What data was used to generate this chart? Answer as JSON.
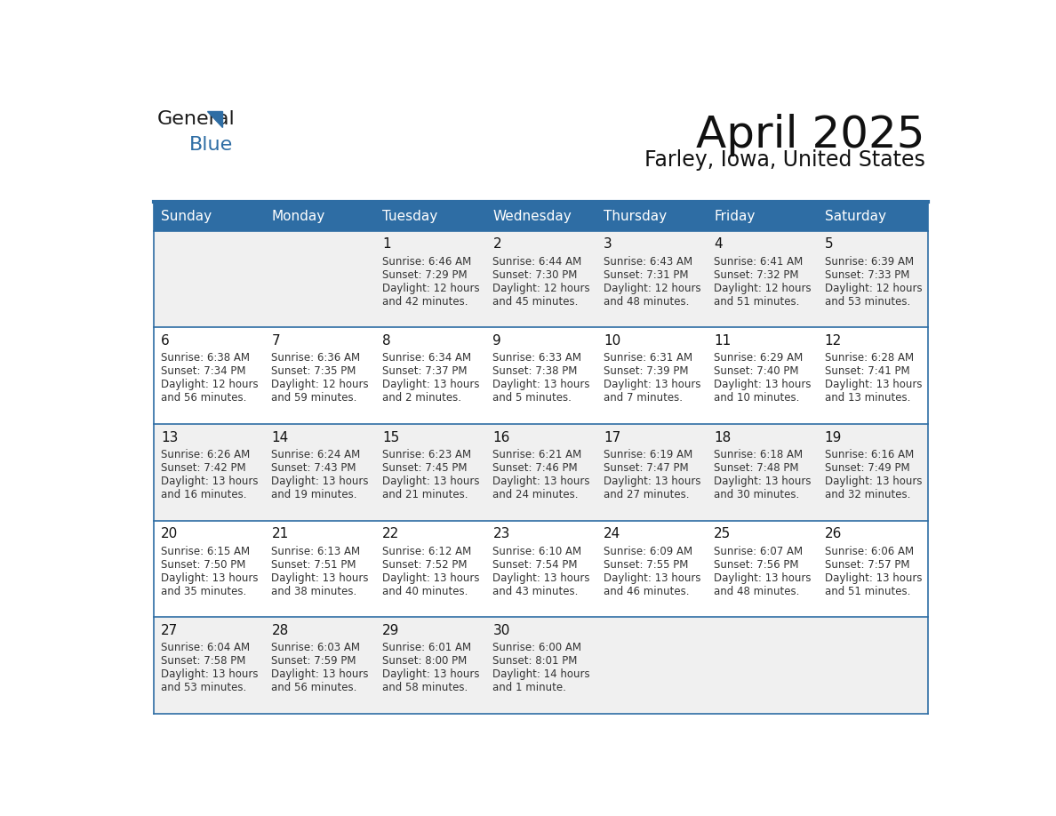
{
  "title": "April 2025",
  "subtitle": "Farley, Iowa, United States",
  "header_bg": "#2E6DA4",
  "header_text": "#FFFFFF",
  "cell_bg_even": "#F0F0F0",
  "cell_bg_odd": "#FFFFFF",
  "cell_border": "#2E6DA4",
  "day_names": [
    "Sunday",
    "Monday",
    "Tuesday",
    "Wednesday",
    "Thursday",
    "Friday",
    "Saturday"
  ],
  "days": [
    {
      "day": 1,
      "col": 2,
      "row": 0,
      "sunrise": "6:46 AM",
      "sunset": "7:29 PM",
      "daylight": "12 hours and 42 minutes."
    },
    {
      "day": 2,
      "col": 3,
      "row": 0,
      "sunrise": "6:44 AM",
      "sunset": "7:30 PM",
      "daylight": "12 hours and 45 minutes."
    },
    {
      "day": 3,
      "col": 4,
      "row": 0,
      "sunrise": "6:43 AM",
      "sunset": "7:31 PM",
      "daylight": "12 hours and 48 minutes."
    },
    {
      "day": 4,
      "col": 5,
      "row": 0,
      "sunrise": "6:41 AM",
      "sunset": "7:32 PM",
      "daylight": "12 hours and 51 minutes."
    },
    {
      "day": 5,
      "col": 6,
      "row": 0,
      "sunrise": "6:39 AM",
      "sunset": "7:33 PM",
      "daylight": "12 hours and 53 minutes."
    },
    {
      "day": 6,
      "col": 0,
      "row": 1,
      "sunrise": "6:38 AM",
      "sunset": "7:34 PM",
      "daylight": "12 hours and 56 minutes."
    },
    {
      "day": 7,
      "col": 1,
      "row": 1,
      "sunrise": "6:36 AM",
      "sunset": "7:35 PM",
      "daylight": "12 hours and 59 minutes."
    },
    {
      "day": 8,
      "col": 2,
      "row": 1,
      "sunrise": "6:34 AM",
      "sunset": "7:37 PM",
      "daylight": "13 hours and 2 minutes."
    },
    {
      "day": 9,
      "col": 3,
      "row": 1,
      "sunrise": "6:33 AM",
      "sunset": "7:38 PM",
      "daylight": "13 hours and 5 minutes."
    },
    {
      "day": 10,
      "col": 4,
      "row": 1,
      "sunrise": "6:31 AM",
      "sunset": "7:39 PM",
      "daylight": "13 hours and 7 minutes."
    },
    {
      "day": 11,
      "col": 5,
      "row": 1,
      "sunrise": "6:29 AM",
      "sunset": "7:40 PM",
      "daylight": "13 hours and 10 minutes."
    },
    {
      "day": 12,
      "col": 6,
      "row": 1,
      "sunrise": "6:28 AM",
      "sunset": "7:41 PM",
      "daylight": "13 hours and 13 minutes."
    },
    {
      "day": 13,
      "col": 0,
      "row": 2,
      "sunrise": "6:26 AM",
      "sunset": "7:42 PM",
      "daylight": "13 hours and 16 minutes."
    },
    {
      "day": 14,
      "col": 1,
      "row": 2,
      "sunrise": "6:24 AM",
      "sunset": "7:43 PM",
      "daylight": "13 hours and 19 minutes."
    },
    {
      "day": 15,
      "col": 2,
      "row": 2,
      "sunrise": "6:23 AM",
      "sunset": "7:45 PM",
      "daylight": "13 hours and 21 minutes."
    },
    {
      "day": 16,
      "col": 3,
      "row": 2,
      "sunrise": "6:21 AM",
      "sunset": "7:46 PM",
      "daylight": "13 hours and 24 minutes."
    },
    {
      "day": 17,
      "col": 4,
      "row": 2,
      "sunrise": "6:19 AM",
      "sunset": "7:47 PM",
      "daylight": "13 hours and 27 minutes."
    },
    {
      "day": 18,
      "col": 5,
      "row": 2,
      "sunrise": "6:18 AM",
      "sunset": "7:48 PM",
      "daylight": "13 hours and 30 minutes."
    },
    {
      "day": 19,
      "col": 6,
      "row": 2,
      "sunrise": "6:16 AM",
      "sunset": "7:49 PM",
      "daylight": "13 hours and 32 minutes."
    },
    {
      "day": 20,
      "col": 0,
      "row": 3,
      "sunrise": "6:15 AM",
      "sunset": "7:50 PM",
      "daylight": "13 hours and 35 minutes."
    },
    {
      "day": 21,
      "col": 1,
      "row": 3,
      "sunrise": "6:13 AM",
      "sunset": "7:51 PM",
      "daylight": "13 hours and 38 minutes."
    },
    {
      "day": 22,
      "col": 2,
      "row": 3,
      "sunrise": "6:12 AM",
      "sunset": "7:52 PM",
      "daylight": "13 hours and 40 minutes."
    },
    {
      "day": 23,
      "col": 3,
      "row": 3,
      "sunrise": "6:10 AM",
      "sunset": "7:54 PM",
      "daylight": "13 hours and 43 minutes."
    },
    {
      "day": 24,
      "col": 4,
      "row": 3,
      "sunrise": "6:09 AM",
      "sunset": "7:55 PM",
      "daylight": "13 hours and 46 minutes."
    },
    {
      "day": 25,
      "col": 5,
      "row": 3,
      "sunrise": "6:07 AM",
      "sunset": "7:56 PM",
      "daylight": "13 hours and 48 minutes."
    },
    {
      "day": 26,
      "col": 6,
      "row": 3,
      "sunrise": "6:06 AM",
      "sunset": "7:57 PM",
      "daylight": "13 hours and 51 minutes."
    },
    {
      "day": 27,
      "col": 0,
      "row": 4,
      "sunrise": "6:04 AM",
      "sunset": "7:58 PM",
      "daylight": "13 hours and 53 minutes."
    },
    {
      "day": 28,
      "col": 1,
      "row": 4,
      "sunrise": "6:03 AM",
      "sunset": "7:59 PM",
      "daylight": "13 hours and 56 minutes."
    },
    {
      "day": 29,
      "col": 2,
      "row": 4,
      "sunrise": "6:01 AM",
      "sunset": "8:00 PM",
      "daylight": "13 hours and 58 minutes."
    },
    {
      "day": 30,
      "col": 3,
      "row": 4,
      "sunrise": "6:00 AM",
      "sunset": "8:01 PM",
      "daylight": "14 hours and 1 minute."
    }
  ],
  "logo_text_general": "General",
  "logo_text_blue": "Blue",
  "logo_color_general": "#1a1a1a",
  "logo_color_blue": "#2E6DA4",
  "logo_triangle_color": "#2E6DA4",
  "title_fontsize": 36,
  "subtitle_fontsize": 17,
  "header_fontsize": 11,
  "day_num_fontsize": 11,
  "cell_text_fontsize": 8.5
}
